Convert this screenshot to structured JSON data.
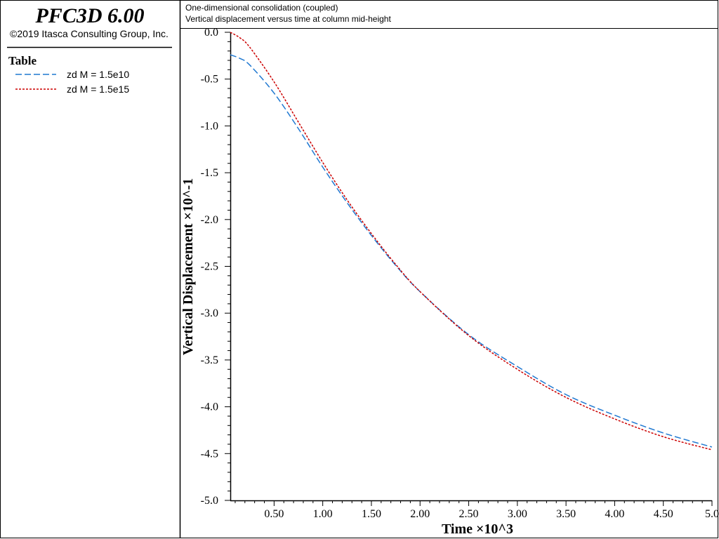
{
  "sidebar": {
    "app_title": "PFC3D 6.00",
    "copyright": "©2019 Itasca Consulting Group, Inc.",
    "legend_title": "Table"
  },
  "header": {
    "line1": "One-dimensional consolidation (coupled)",
    "line2": "Vertical displacement versus time at column mid-height"
  },
  "chart_data": {
    "type": "line",
    "xlabel": "Time ×10^3",
    "ylabel": "Vertical Displacement ×10^-1",
    "xlim": [
      0.05,
      5.0
    ],
    "ylim": [
      -5.0,
      0.0
    ],
    "x_ticks": [
      0.5,
      1.0,
      1.5,
      2.0,
      2.5,
      3.0,
      3.5,
      4.0,
      4.5,
      5.0
    ],
    "x_tick_labels": [
      "0.50",
      "1.00",
      "1.50",
      "2.00",
      "2.50",
      "3.00",
      "3.50",
      "4.00",
      "4.50",
      "5.0"
    ],
    "y_ticks": [
      0.0,
      -0.5,
      -1.0,
      -1.5,
      -2.0,
      -2.5,
      -3.0,
      -3.5,
      -4.0,
      -4.5,
      -5.0
    ],
    "y_tick_labels": [
      "0.0",
      "-0.5",
      "-1.0",
      "-1.5",
      "-2.0",
      "-2.5",
      "-3.0",
      "-3.5",
      "-4.0",
      "-4.5",
      "-5.0"
    ],
    "grid": false,
    "legend_position": "left-panel",
    "x": [
      0.05,
      0.15,
      0.25,
      0.5,
      0.75,
      1.0,
      1.25,
      1.5,
      1.75,
      2.0,
      2.5,
      3.0,
      3.5,
      4.0,
      4.5,
      5.0
    ],
    "series": [
      {
        "name": "zd M = 1.5e10",
        "color": "#1f78d1",
        "style": "dashed",
        "values": [
          -0.24,
          -0.28,
          -0.35,
          -0.65,
          -1.03,
          -1.44,
          -1.82,
          -2.17,
          -2.49,
          -2.77,
          -3.23,
          -3.57,
          -3.87,
          -4.09,
          -4.28,
          -4.43
        ]
      },
      {
        "name": "zd M = 1.5e15",
        "color": "#cc0000",
        "style": "dotted",
        "values": [
          0.0,
          -0.06,
          -0.16,
          -0.53,
          -0.96,
          -1.39,
          -1.79,
          -2.15,
          -2.48,
          -2.77,
          -3.24,
          -3.6,
          -3.9,
          -4.13,
          -4.32,
          -4.46
        ]
      }
    ]
  }
}
